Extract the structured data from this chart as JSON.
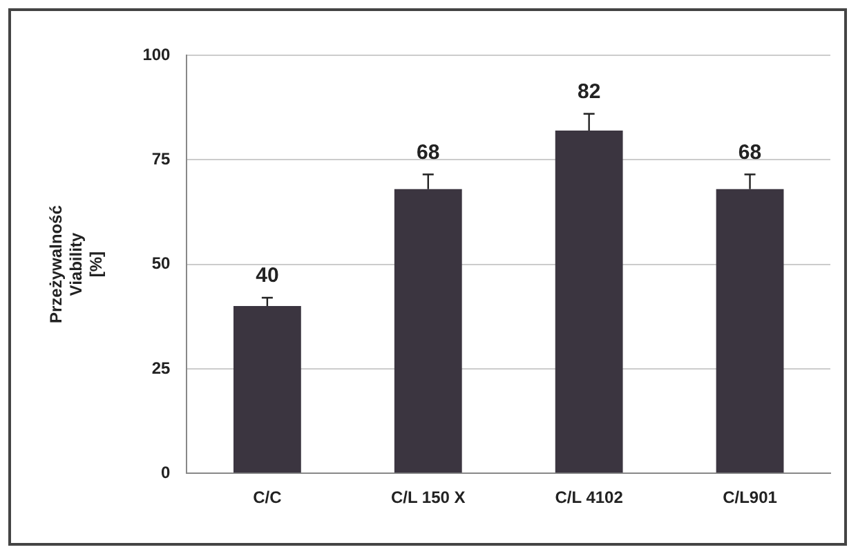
{
  "chart_data": {
    "type": "bar",
    "ylabel": "Przeżywalność Viability [%]",
    "categories": [
      "C/C",
      "C/L 150 X",
      "C/L 4102",
      "C/L901"
    ],
    "values": [
      40,
      68,
      82,
      68
    ],
    "errors": [
      [
        40,
        42
      ],
      [
        68,
        71.5
      ],
      [
        82,
        86
      ],
      [
        68,
        71.5
      ]
    ],
    "color": "#3b3540",
    "ylim": [
      0,
      100
    ],
    "yticks": [
      0,
      25,
      50,
      75,
      100
    ],
    "grid": "y",
    "data_labels": true,
    "legend": false
  }
}
